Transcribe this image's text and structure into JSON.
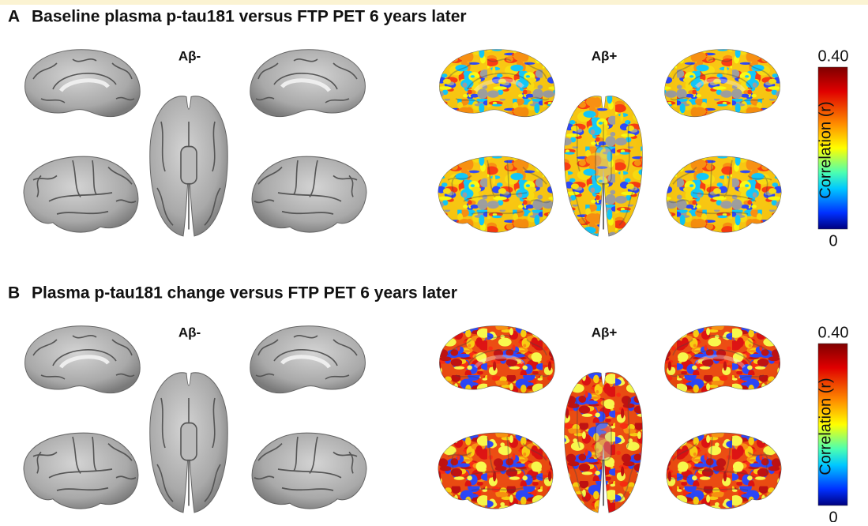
{
  "panels": [
    {
      "letter": "A",
      "title": "Baseline plasma p-tau181 versus FTP PET 6 years later",
      "groups": [
        "Aβ-",
        "Aβ+"
      ],
      "colorbar": {
        "label": "Correlation (r)",
        "max": "0.40",
        "min": "0"
      }
    },
    {
      "letter": "B",
      "title": "Plasma p-tau181 change versus FTP PET 6 years later",
      "groups": [
        "Aβ-",
        "Aβ+"
      ],
      "colorbar": {
        "label": "Correlation (r)",
        "max": "0.40",
        "min": "0"
      }
    }
  ]
}
